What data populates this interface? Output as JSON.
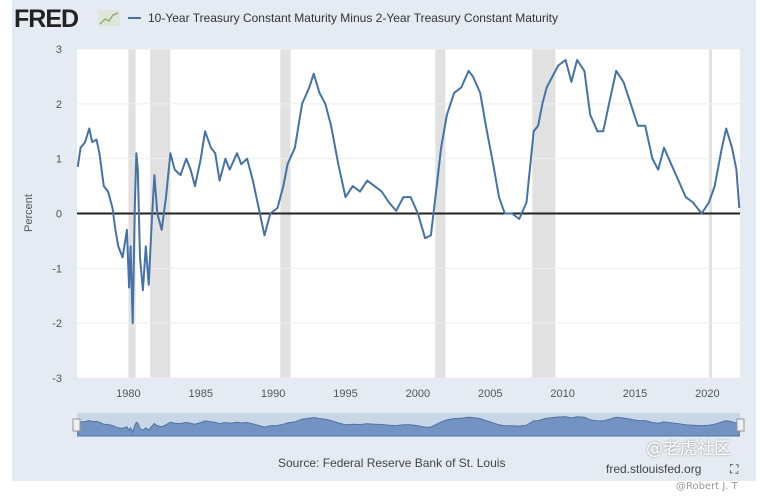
{
  "header": {
    "logo": "FRED",
    "logo_icon": "line-chart-icon"
  },
  "chart_data": {
    "type": "line",
    "title": "",
    "xlabel": "",
    "ylabel": "Percent",
    "ylim": [
      -3,
      3
    ],
    "xlim": [
      1976.45,
      2022.25
    ],
    "yticks": [
      "3",
      "2",
      "1",
      "0",
      "-1",
      "-2",
      "-3"
    ],
    "xticks": [
      "1980",
      "1985",
      "1990",
      "1995",
      "2000",
      "2005",
      "2010",
      "2015",
      "2020"
    ],
    "grid": true,
    "legend_position": "top",
    "series": [
      {
        "name": "10-Year Treasury Constant Maturity Minus 2-Year Treasury Constant Maturity",
        "color": "#4572a7",
        "x": [
          1976.5,
          1976.7,
          1977.0,
          1977.3,
          1977.5,
          1977.8,
          1978.0,
          1978.3,
          1978.6,
          1978.9,
          1979.1,
          1979.3,
          1979.6,
          1979.9,
          1980.05,
          1980.15,
          1980.3,
          1980.45,
          1980.55,
          1980.65,
          1980.8,
          1981.0,
          1981.2,
          1981.4,
          1981.6,
          1981.8,
          1982.0,
          1982.3,
          1982.6,
          1982.9,
          1983.2,
          1983.6,
          1984.0,
          1984.3,
          1984.6,
          1985.0,
          1985.3,
          1985.7,
          1986.0,
          1986.3,
          1986.7,
          1987.0,
          1987.5,
          1987.8,
          1988.2,
          1988.6,
          1989.0,
          1989.4,
          1989.8,
          1990.3,
          1990.7,
          1991.0,
          1991.5,
          1992.0,
          1992.5,
          1992.8,
          1993.2,
          1993.6,
          1994.0,
          1994.5,
          1995.0,
          1995.5,
          1996.0,
          1996.5,
          1997.0,
          1997.5,
          1998.0,
          1998.5,
          1999.0,
          1999.5,
          2000.0,
          2000.5,
          2000.9,
          2001.3,
          2001.6,
          2002.0,
          2002.5,
          2003.0,
          2003.5,
          2003.8,
          2004.3,
          2004.7,
          2005.2,
          2005.6,
          2006.0,
          2006.5,
          2007.0,
          2007.5,
          2008.0,
          2008.3,
          2008.6,
          2008.9,
          2009.3,
          2009.7,
          2010.2,
          2010.6,
          2011.0,
          2011.5,
          2011.9,
          2012.4,
          2012.8,
          2013.2,
          2013.7,
          2014.2,
          2014.7,
          2015.2,
          2015.7,
          2016.2,
          2016.6,
          2017.0,
          2017.5,
          2018.0,
          2018.5,
          2019.0,
          2019.6,
          2020.1,
          2020.5,
          2021.0,
          2021.3,
          2021.7,
          2022.0,
          2022.2
        ],
        "y": [
          0.85,
          1.2,
          1.3,
          1.55,
          1.3,
          1.35,
          1.1,
          0.5,
          0.4,
          0.1,
          -0.3,
          -0.6,
          -0.8,
          -0.3,
          -1.35,
          -0.6,
          -2.0,
          0.2,
          1.1,
          0.8,
          -0.8,
          -1.4,
          -0.6,
          -1.3,
          -0.2,
          0.7,
          0.0,
          -0.3,
          0.3,
          1.1,
          0.8,
          0.7,
          1.0,
          0.8,
          0.5,
          1.0,
          1.5,
          1.2,
          1.1,
          0.6,
          1.0,
          0.8,
          1.1,
          0.9,
          1.0,
          0.6,
          0.1,
          -0.4,
          0.0,
          0.1,
          0.5,
          0.9,
          1.2,
          2.0,
          2.3,
          2.55,
          2.2,
          2.0,
          1.6,
          0.9,
          0.3,
          0.5,
          0.4,
          0.6,
          0.5,
          0.4,
          0.2,
          0.05,
          0.3,
          0.3,
          0.0,
          -0.45,
          -0.4,
          0.5,
          1.2,
          1.8,
          2.2,
          2.3,
          2.6,
          2.5,
          2.2,
          1.6,
          0.9,
          0.3,
          0.0,
          0.0,
          -0.1,
          0.2,
          1.5,
          1.6,
          2.0,
          2.3,
          2.5,
          2.7,
          2.8,
          2.4,
          2.8,
          2.6,
          1.8,
          1.5,
          1.5,
          2.0,
          2.6,
          2.4,
          2.0,
          1.6,
          1.6,
          1.0,
          0.8,
          1.2,
          0.9,
          0.6,
          0.3,
          0.2,
          0.0,
          0.2,
          0.5,
          1.2,
          1.55,
          1.2,
          0.8,
          0.1
        ]
      }
    ],
    "recessions": [
      [
        1980.0,
        1980.5
      ],
      [
        1981.5,
        1982.9
      ],
      [
        1990.5,
        1991.2
      ],
      [
        2001.2,
        2001.9
      ],
      [
        2007.9,
        2009.5
      ],
      [
        2020.1,
        2020.3
      ]
    ]
  },
  "footer": {
    "source": "Source: Federal Reserve Bank of St. Louis",
    "site": "fred.stlouisfed.org",
    "fullscreen_icon": "expand-icon"
  },
  "watermark": {
    "line1": "@老虎社区",
    "line2": "@Robert J. T"
  }
}
